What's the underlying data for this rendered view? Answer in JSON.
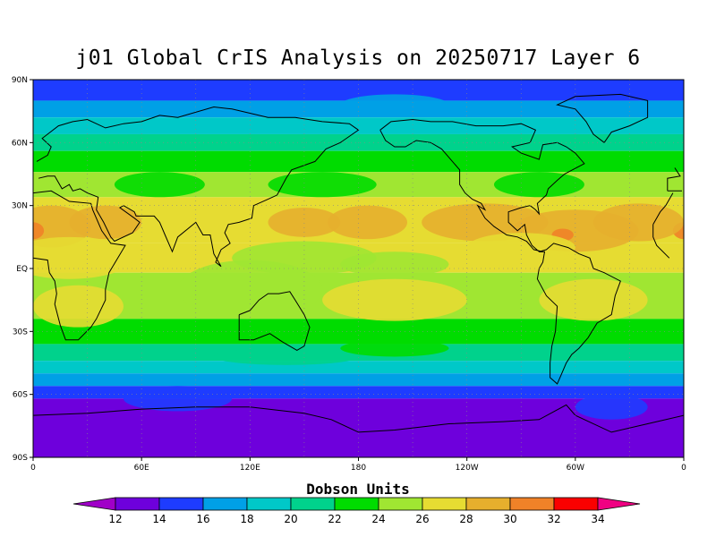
{
  "title": "j01 Global CrIS Analysis on 20250717 Layer 6",
  "colorbar": {
    "title": "Dobson Units",
    "levels": [
      12,
      14,
      16,
      18,
      20,
      22,
      24,
      26,
      28,
      30,
      32,
      34
    ],
    "colors": [
      "#a000c8",
      "#6e00dc",
      "#1e3cff",
      "#00a0e6",
      "#00c8c8",
      "#00d28c",
      "#00dc00",
      "#a0e632",
      "#e6dc32",
      "#e6af2d",
      "#f08228",
      "#fa0000",
      "#f00082"
    ]
  },
  "map": {
    "lat_ticks": [
      "90N",
      "60N",
      "30N",
      "EQ",
      "30S",
      "60S",
      "90S"
    ],
    "lon_ticks": [
      "0",
      "60E",
      "120E",
      "180",
      "120W",
      "60W",
      "0"
    ],
    "lat_values": [
      90,
      60,
      30,
      0,
      -30,
      -60,
      -90
    ],
    "lon_values": [
      0,
      60,
      120,
      180,
      240,
      300,
      360
    ],
    "zonal_bands": [
      {
        "lat_from": 90,
        "lat_to": 80,
        "value": 15
      },
      {
        "lat_from": 80,
        "lat_to": 72,
        "value": 17
      },
      {
        "lat_from": 72,
        "lat_to": 64,
        "value": 19
      },
      {
        "lat_from": 64,
        "lat_to": 56,
        "value": 21
      },
      {
        "lat_from": 56,
        "lat_to": 46,
        "value": 23
      },
      {
        "lat_from": 46,
        "lat_to": 34,
        "value": 25
      },
      {
        "lat_from": 34,
        "lat_to": 12,
        "value": 27
      },
      {
        "lat_from": 12,
        "lat_to": -2,
        "value": 27
      },
      {
        "lat_from": -2,
        "lat_to": -24,
        "value": 25
      },
      {
        "lat_from": -24,
        "lat_to": -36,
        "value": 23
      },
      {
        "lat_from": -36,
        "lat_to": -44,
        "value": 21
      },
      {
        "lat_from": -44,
        "lat_to": -50,
        "value": 19
      },
      {
        "lat_from": -50,
        "lat_to": -56,
        "value": 17
      },
      {
        "lat_from": -56,
        "lat_to": -62,
        "value": 15
      },
      {
        "lat_from": -62,
        "lat_to": -90,
        "value": 13
      }
    ]
  }
}
